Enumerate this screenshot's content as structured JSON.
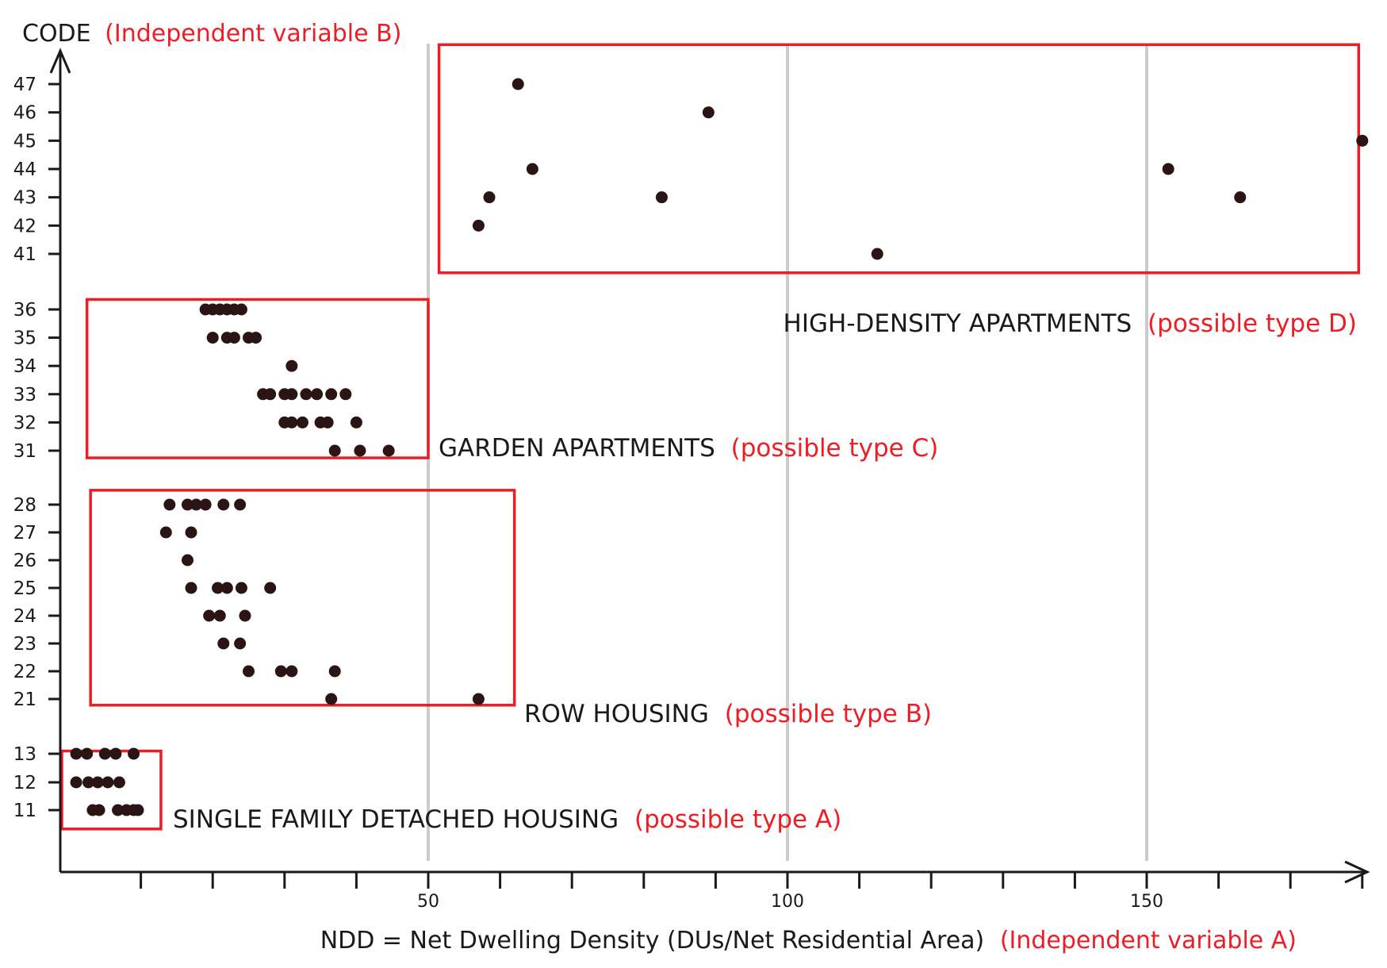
{
  "colors": {
    "accent": "#ee1c24",
    "ink": "#1a1a1a",
    "point": "#2a1414",
    "grid": "#cccccc"
  },
  "chart_data": {
    "type": "scatter",
    "title": "",
    "ylabel": {
      "text": "CODE",
      "note": "(Independent variable B)"
    },
    "xlabel": {
      "text": "NDD = Net Dwelling Density (DUs/Net Residential Area)",
      "note": "(Independent variable A)"
    },
    "x_ticks": [
      50,
      100,
      150
    ],
    "x_minor_step": 10,
    "xlim": [
      -2,
      183
    ],
    "y_ticks": [
      11,
      12,
      13,
      21,
      22,
      23,
      24,
      25,
      26,
      27,
      28,
      31,
      32,
      33,
      34,
      35,
      36,
      41,
      42,
      43,
      44,
      45,
      46,
      47
    ],
    "gridlines_x": [
      50,
      100,
      150
    ],
    "groups": [
      {
        "name": "SINGLE FAMILY DETACHED HOUSING",
        "note": "(possible type A)",
        "box": {
          "x": [
            -1,
            12.8
          ],
          "y": [
            10.3,
            13.4
          ]
        }
      },
      {
        "name": "ROW HOUSING",
        "note": "(possible type B)",
        "box": {
          "x": [
            3,
            62
          ],
          "y": [
            20.1,
            28.8
          ]
        }
      },
      {
        "name": "GARDEN APARTMENTS",
        "note": "(possible type C)",
        "box": {
          "x": [
            2.5,
            50
          ],
          "y": [
            30.6,
            36.9
          ]
        }
      },
      {
        "name": "HIGH-DENSITY APARTMENTS",
        "note": "(possible type D)",
        "box": {
          "x": [
            51.5,
            179.5
          ],
          "y": [
            39.3,
            48.4
          ]
        }
      }
    ],
    "series": [
      {
        "name": "type A",
        "points": [
          [
            1,
            13
          ],
          [
            2.5,
            13
          ],
          [
            5,
            13
          ],
          [
            6.5,
            13
          ],
          [
            9,
            13
          ],
          [
            1,
            12
          ],
          [
            2.7,
            12
          ],
          [
            4,
            12
          ],
          [
            5.4,
            12
          ],
          [
            7,
            12
          ],
          [
            3.3,
            11
          ],
          [
            4.2,
            11
          ],
          [
            6.8,
            11
          ],
          [
            8,
            11
          ],
          [
            9,
            11
          ],
          [
            9.6,
            11
          ]
        ]
      },
      {
        "name": "type B",
        "points": [
          [
            14,
            28
          ],
          [
            16.5,
            28
          ],
          [
            17.7,
            28
          ],
          [
            19,
            28
          ],
          [
            21.5,
            28
          ],
          [
            23.8,
            28
          ],
          [
            13.5,
            27
          ],
          [
            17,
            27
          ],
          [
            16.5,
            26
          ],
          [
            17,
            25
          ],
          [
            20.7,
            25
          ],
          [
            22,
            25
          ],
          [
            24,
            25
          ],
          [
            28,
            25
          ],
          [
            19.5,
            24
          ],
          [
            21,
            24
          ],
          [
            24.5,
            24
          ],
          [
            21.5,
            23
          ],
          [
            23.8,
            23
          ],
          [
            25,
            22
          ],
          [
            29.5,
            22
          ],
          [
            31,
            22
          ],
          [
            37,
            22
          ],
          [
            36.5,
            21
          ],
          [
            57,
            21
          ]
        ]
      },
      {
        "name": "type C",
        "points": [
          [
            19,
            36
          ],
          [
            20,
            36
          ],
          [
            21,
            36
          ],
          [
            22,
            36
          ],
          [
            23,
            36
          ],
          [
            24,
            36
          ],
          [
            20,
            35
          ],
          [
            22,
            35
          ],
          [
            23,
            35
          ],
          [
            25,
            35
          ],
          [
            26,
            35
          ],
          [
            31,
            34
          ],
          [
            27,
            33
          ],
          [
            28,
            33
          ],
          [
            30,
            33
          ],
          [
            31,
            33
          ],
          [
            33,
            33
          ],
          [
            34.5,
            33
          ],
          [
            36.5,
            33
          ],
          [
            38.5,
            33
          ],
          [
            30,
            32
          ],
          [
            31,
            32
          ],
          [
            32.5,
            32
          ],
          [
            35,
            32
          ],
          [
            36,
            32
          ],
          [
            40,
            32
          ],
          [
            37,
            31
          ],
          [
            40.5,
            31
          ],
          [
            44.5,
            31
          ]
        ]
      },
      {
        "name": "type D",
        "points": [
          [
            57,
            42
          ],
          [
            58.5,
            43
          ],
          [
            62.5,
            47
          ],
          [
            64.5,
            44
          ],
          [
            82.5,
            43
          ],
          [
            89,
            46
          ],
          [
            112.5,
            41
          ],
          [
            153,
            44
          ],
          [
            163,
            43
          ],
          [
            180,
            45
          ]
        ]
      }
    ]
  }
}
